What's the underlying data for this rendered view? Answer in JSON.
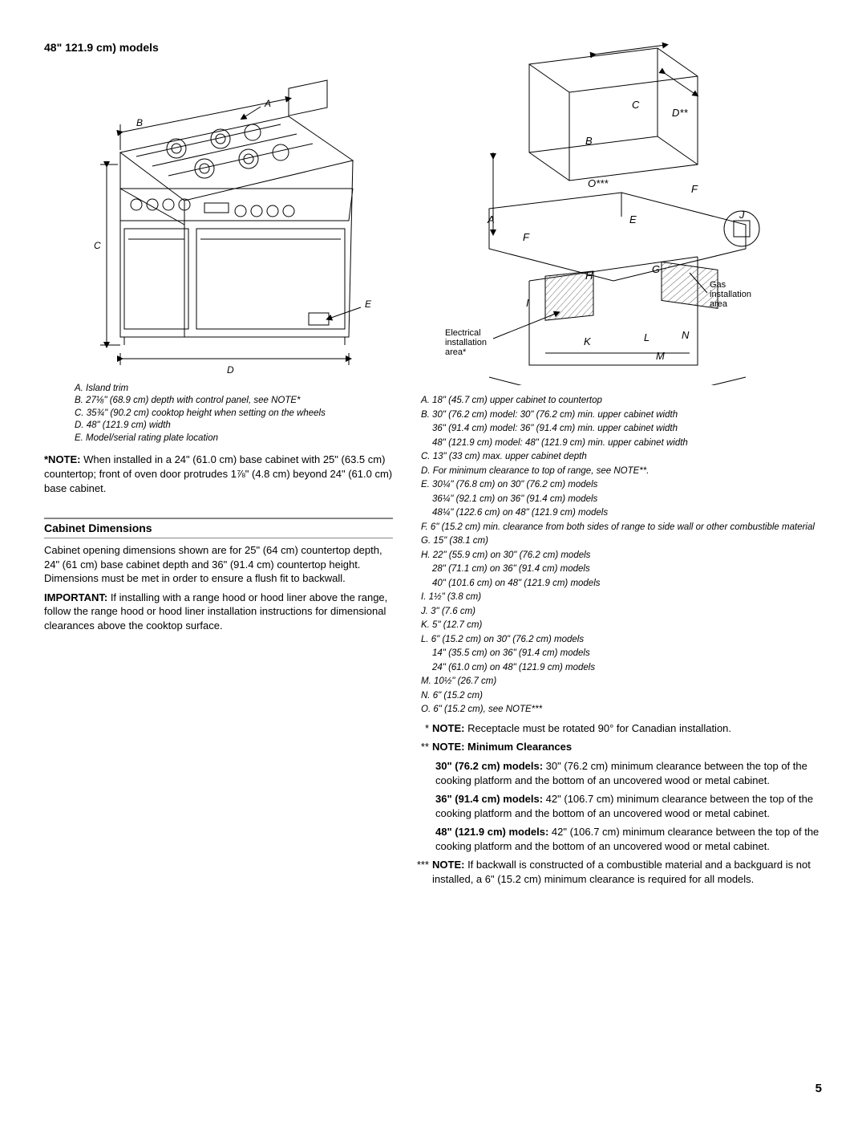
{
  "title": "48\" 121.9 cm) models",
  "page_number": "5",
  "left": {
    "diagram_labels": {
      "A": "A",
      "B": "B",
      "C": "C",
      "D": "D",
      "E": "E"
    },
    "legend": [
      "A. Island trim",
      "B. 27⅛\" (68.9 cm) depth with control panel, see NOTE*",
      "C. 35¾\" (90.2 cm) cooktop height when setting on the wheels",
      "D. 48\" (121.9 cm) width",
      "E. Model/serial rating plate location"
    ],
    "note_label": "*NOTE:",
    "note_text": " When installed in a 24\" (61.0 cm) base cabinet with 25\" (63.5 cm) countertop; front of oven door protrudes 1⅞\" (4.8 cm) beyond 24\" (61.0 cm) base cabinet.",
    "cabinet_heading": "Cabinet Dimensions",
    "cabinet_p1": "Cabinet opening dimensions shown are for 25\" (64 cm) countertop depth, 24\" (61 cm) base cabinet depth and 36\" (91.4 cm) countertop height. Dimensions must be met in order to ensure a flush fit to backwall.",
    "important_label": "IMPORTANT:",
    "important_text": " If installing with a range hood or hood liner above the range, follow the range hood or hood liner installation instructions for  dimensional clearances above the cooktop surface."
  },
  "right": {
    "gas_label": "Gas installation area",
    "elec_label": "Electrical installation area*",
    "diagram_letters": [
      "A",
      "B",
      "C",
      "D**",
      "E",
      "F",
      "G",
      "H",
      "I",
      "J",
      "K",
      "L",
      "M",
      "N",
      "O***"
    ],
    "legend": [
      {
        "t": "A. 18\" (45.7 cm) upper cabinet to countertop"
      },
      {
        "t": "B. 30\" (76.2 cm) model: 30\" (76.2 cm) min. upper cabinet width"
      },
      {
        "t": "36\" (91.4 cm) model: 36\" (91.4 cm) min. upper cabinet width",
        "sub": true
      },
      {
        "t": "48\" (121.9 cm) model: 48\" (121.9 cm) min. upper cabinet width",
        "sub": true
      },
      {
        "t": "C. 13\" (33 cm) max. upper cabinet depth"
      },
      {
        "t": "D. For minimum clearance to top of range, see NOTE**."
      },
      {
        "t": "E. 30¼\" (76.8 cm) on 30\" (76.2 cm) models"
      },
      {
        "t": "36¼\" (92.1 cm) on 36\" (91.4 cm) models",
        "sub": true
      },
      {
        "t": "48¼\" (122.6 cm) on 48\" (121.9 cm) models",
        "sub": true
      },
      {
        "t": "F. 6\" (15.2 cm) min. clearance from both sides of range to side wall or other combustible material"
      },
      {
        "t": "G. 15\" (38.1 cm)"
      },
      {
        "t": "H. 22\" (55.9 cm) on 30\" (76.2 cm) models"
      },
      {
        "t": "28\" (71.1 cm) on 36\" (91.4 cm) models",
        "sub": true
      },
      {
        "t": "40\" (101.6 cm) on 48\" (121.9 cm) models",
        "sub": true
      },
      {
        "t": "I. 1½\" (3.8 cm)"
      },
      {
        "t": "J. 3\" (7.6 cm)"
      },
      {
        "t": "K. 5\" (12.7 cm)"
      },
      {
        "t": "L. 6\" (15.2 cm) on 30\" (76.2 cm) models"
      },
      {
        "t": "14\" (35.5 cm) on 36\" (91.4 cm) models",
        "sub": true
      },
      {
        "t": "24\" (61.0 cm) on 48\" (121.9 cm) models",
        "sub": true
      },
      {
        "t": "M. 10½\" (26.7 cm)"
      },
      {
        "t": "N. 6\" (15.2 cm)"
      },
      {
        "t": "O. 6\" (15.2 cm), see NOTE***"
      }
    ],
    "notes": [
      {
        "star": "*",
        "label": "NOTE:",
        "text": " Receptacle must be rotated 90° for Canadian installation."
      },
      {
        "star": "**",
        "label": "NOTE: Minimum Clearances",
        "text": ""
      }
    ],
    "clearances": [
      {
        "b": "30\" (76.2 cm) models:",
        "t": " 30\" (76.2 cm) minimum clearance between the top of the cooking platform and the bottom of an uncovered wood or metal cabinet."
      },
      {
        "b": "36\" (91.4 cm) models:",
        "t": " 42\" (106.7 cm) minimum clearance between the top of the cooking platform and the bottom of an uncovered wood or metal cabinet."
      },
      {
        "b": "48\" (121.9 cm) models:",
        "t": " 42\" (106.7 cm) minimum clearance between the top of the cooking platform and the bottom of an uncovered wood or metal cabinet."
      }
    ],
    "note3": {
      "star": "***",
      "label": "NOTE:",
      "text": " If backwall is constructed of a combustible material and a backguard is not installed, a  6\" (15.2 cm) minimum clearance is required for all models."
    }
  }
}
